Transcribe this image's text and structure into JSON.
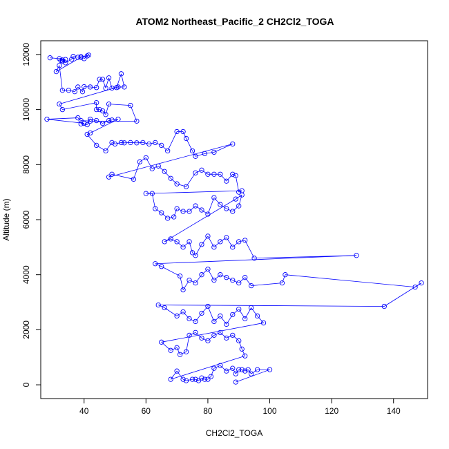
{
  "chart_data": {
    "type": "line",
    "title": "ATOM2 Northeast_Pacific_2 CH2Cl2_TOGA",
    "xlabel": "CH2Cl2_TOGA",
    "ylabel": "Altitude (m)",
    "xlim": [
      26,
      151
    ],
    "ylim": [
      -500,
      12500
    ],
    "x_ticks": [
      40,
      60,
      80,
      100,
      120,
      140
    ],
    "y_ticks": [
      0,
      2000,
      4000,
      6000,
      8000,
      10000,
      12000
    ],
    "grid": false,
    "legend": "none",
    "color": "#0000ff",
    "series": [
      {
        "points": [
          [
            29,
            11880
          ],
          [
            32,
            11850
          ],
          [
            33,
            11800
          ],
          [
            32.5,
            11780
          ],
          [
            34,
            11820
          ],
          [
            33,
            11760
          ],
          [
            34,
            11700
          ],
          [
            36,
            11830
          ],
          [
            36.5,
            11930
          ],
          [
            38,
            11900
          ],
          [
            39,
            11920
          ],
          [
            41,
            11950
          ],
          [
            40,
            11850
          ],
          [
            41.5,
            11980
          ],
          [
            39,
            11900
          ],
          [
            31,
            11380
          ],
          [
            32,
            11600
          ],
          [
            33,
            10700
          ],
          [
            35,
            10700
          ],
          [
            37,
            10650
          ],
          [
            38,
            10820
          ],
          [
            39.5,
            10650
          ],
          [
            40,
            10830
          ],
          [
            42,
            10820
          ],
          [
            44,
            10800
          ],
          [
            45,
            11100
          ],
          [
            46,
            11100
          ],
          [
            47,
            10780
          ],
          [
            48,
            11150
          ],
          [
            49,
            10780
          ],
          [
            50.5,
            10800
          ],
          [
            52,
            11300
          ],
          [
            53,
            10820
          ],
          [
            51,
            10820
          ],
          [
            32,
            10200
          ],
          [
            33,
            10000
          ],
          [
            44,
            10250
          ],
          [
            44,
            10000
          ],
          [
            45,
            10000
          ],
          [
            46,
            9950
          ],
          [
            47,
            9820
          ],
          [
            48,
            10200
          ],
          [
            55,
            10150
          ],
          [
            57,
            9580
          ],
          [
            42,
            9580
          ],
          [
            39,
            9600
          ],
          [
            38,
            9700
          ],
          [
            28,
            9650
          ],
          [
            40,
            9500
          ],
          [
            39,
            9480
          ],
          [
            41,
            9450
          ],
          [
            42,
            9650
          ],
          [
            44,
            9600
          ],
          [
            46,
            9500
          ],
          [
            48,
            9600
          ],
          [
            49,
            9620
          ],
          [
            51,
            9650
          ],
          [
            42,
            9150
          ],
          [
            41,
            9100
          ],
          [
            44,
            8700
          ],
          [
            47,
            8500
          ],
          [
            49,
            8800
          ],
          [
            50,
            8750
          ],
          [
            52,
            8800
          ],
          [
            53,
            8790
          ],
          [
            55,
            8800
          ],
          [
            57,
            8790
          ],
          [
            59,
            8800
          ],
          [
            61,
            8750
          ],
          [
            63,
            8800
          ],
          [
            65,
            8700
          ],
          [
            67,
            8500
          ],
          [
            70,
            9200
          ],
          [
            72,
            9200
          ],
          [
            73,
            8950
          ],
          [
            75,
            8500
          ],
          [
            76,
            8300
          ],
          [
            79,
            8400
          ],
          [
            82,
            8450
          ],
          [
            88,
            8750
          ],
          [
            48,
            7550
          ],
          [
            49,
            7650
          ],
          [
            56,
            7470
          ],
          [
            58,
            8100
          ],
          [
            60,
            8250
          ],
          [
            62,
            7850
          ],
          [
            64,
            7950
          ],
          [
            66,
            7750
          ],
          [
            68,
            7500
          ],
          [
            70,
            7300
          ],
          [
            73,
            7200
          ],
          [
            76,
            7700
          ],
          [
            78,
            7800
          ],
          [
            80,
            7650
          ],
          [
            82,
            7650
          ],
          [
            84,
            7650
          ],
          [
            86,
            7400
          ],
          [
            88,
            7650
          ],
          [
            89,
            7600
          ],
          [
            90,
            7000
          ],
          [
            91,
            7050
          ],
          [
            60,
            6950
          ],
          [
            62,
            6950
          ],
          [
            63,
            6400
          ],
          [
            65,
            6250
          ],
          [
            67,
            6050
          ],
          [
            69,
            6100
          ],
          [
            70,
            6400
          ],
          [
            72,
            6300
          ],
          [
            74,
            6300
          ],
          [
            76,
            6500
          ],
          [
            78,
            6350
          ],
          [
            80,
            6200
          ],
          [
            82,
            6800
          ],
          [
            84,
            6550
          ],
          [
            86,
            6400
          ],
          [
            88,
            6300
          ],
          [
            90,
            6500
          ],
          [
            91,
            6900
          ],
          [
            89,
            6750
          ],
          [
            66,
            5200
          ],
          [
            68,
            5300
          ],
          [
            70,
            5200
          ],
          [
            72,
            5000
          ],
          [
            74,
            5200
          ],
          [
            75,
            4800
          ],
          [
            76,
            4700
          ],
          [
            78,
            5100
          ],
          [
            80,
            5400
          ],
          [
            82,
            5000
          ],
          [
            84,
            5200
          ],
          [
            86,
            5350
          ],
          [
            88,
            5000
          ],
          [
            90,
            5200
          ],
          [
            92,
            5250
          ],
          [
            95,
            4600
          ],
          [
            128,
            4700
          ],
          [
            63,
            4400
          ],
          [
            65,
            4300
          ],
          [
            71,
            3950
          ],
          [
            72,
            3450
          ],
          [
            74,
            3800
          ],
          [
            76,
            3700
          ],
          [
            78,
            4000
          ],
          [
            80,
            4200
          ],
          [
            82,
            3800
          ],
          [
            84,
            4000
          ],
          [
            86,
            3900
          ],
          [
            88,
            3800
          ],
          [
            90,
            3700
          ],
          [
            92,
            3900
          ],
          [
            94,
            3600
          ],
          [
            104,
            3700
          ],
          [
            105,
            4000
          ],
          [
            147,
            3550
          ],
          [
            149,
            3700
          ],
          [
            137,
            2850
          ],
          [
            64,
            2900
          ],
          [
            66,
            2800
          ],
          [
            70,
            2500
          ],
          [
            72,
            2650
          ],
          [
            74,
            2400
          ],
          [
            76,
            2300
          ],
          [
            78,
            2600
          ],
          [
            80,
            2850
          ],
          [
            82,
            2300
          ],
          [
            84,
            2500
          ],
          [
            86,
            2200
          ],
          [
            88,
            2550
          ],
          [
            90,
            2750
          ],
          [
            92,
            2400
          ],
          [
            94,
            2800
          ],
          [
            96,
            2500
          ],
          [
            98,
            2250
          ],
          [
            65,
            1550
          ],
          [
            68,
            1250
          ],
          [
            70,
            1350
          ],
          [
            71,
            1100
          ],
          [
            73,
            1200
          ],
          [
            74,
            1800
          ],
          [
            76,
            1900
          ],
          [
            78,
            1700
          ],
          [
            80,
            1600
          ],
          [
            82,
            1800
          ],
          [
            84,
            1900
          ],
          [
            86,
            1700
          ],
          [
            88,
            1800
          ],
          [
            90,
            1600
          ],
          [
            91,
            1300
          ],
          [
            92,
            1050
          ],
          [
            68,
            200
          ],
          [
            70,
            500
          ],
          [
            72,
            200
          ],
          [
            73,
            150
          ],
          [
            75,
            200
          ],
          [
            76,
            200
          ],
          [
            77,
            150
          ],
          [
            78,
            250
          ],
          [
            79,
            200
          ],
          [
            80,
            200
          ],
          [
            81,
            300
          ],
          [
            82,
            600
          ],
          [
            84,
            700
          ],
          [
            86,
            500
          ],
          [
            88,
            600
          ],
          [
            89,
            400
          ],
          [
            90,
            550
          ],
          [
            91,
            550
          ],
          [
            92,
            500
          ],
          [
            93,
            550
          ],
          [
            94,
            400
          ],
          [
            96,
            550
          ],
          [
            100,
            550
          ],
          [
            89,
            100
          ]
        ]
      }
    ]
  }
}
